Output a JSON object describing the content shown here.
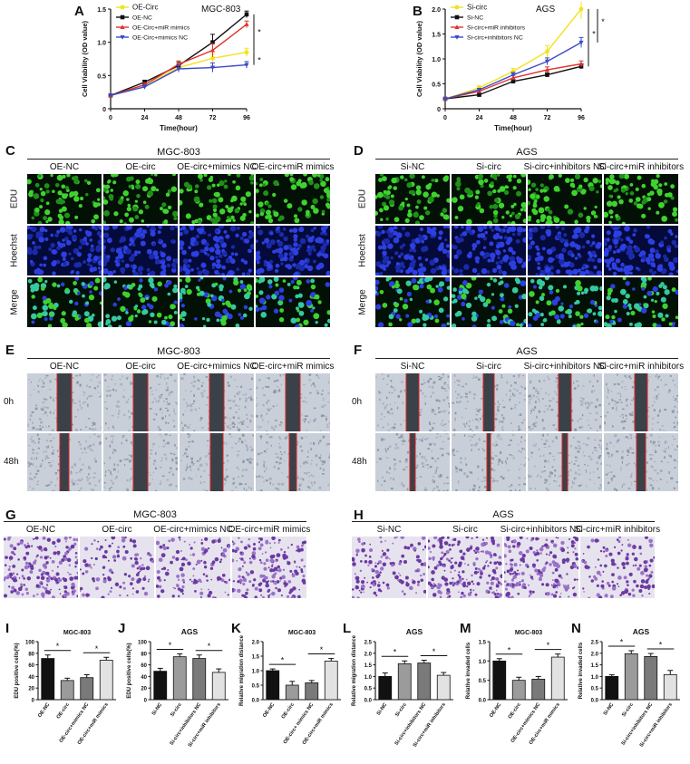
{
  "letters": [
    "A",
    "B",
    "C",
    "D",
    "E",
    "F",
    "G",
    "H",
    "I",
    "J",
    "K",
    "L",
    "M",
    "N"
  ],
  "growth": [
    {
      "id": "A",
      "cell": "MGC-803",
      "legend": [
        "OE-Circ",
        "OE-NC",
        "OE-Circ+miR mimics",
        "OE-Circ+mimics NC"
      ],
      "colors": [
        "#f2e21b",
        "#111111",
        "#e0322b",
        "#3b49c8"
      ],
      "markers": [
        "circle",
        "square",
        "triangle",
        "tri-down"
      ],
      "x": [
        0,
        24,
        48,
        72,
        96
      ],
      "series": [
        [
          0.2,
          0.36,
          0.62,
          0.76,
          0.85
        ],
        [
          0.2,
          0.4,
          0.65,
          1.0,
          1.42
        ],
        [
          0.2,
          0.36,
          0.67,
          0.88,
          1.27
        ],
        [
          0.2,
          0.33,
          0.6,
          0.62,
          0.66
        ]
      ],
      "err": [
        [
          0.02,
          0.03,
          0.05,
          0.06,
          0.06
        ],
        [
          0.02,
          0.03,
          0.05,
          0.12,
          0.05
        ],
        [
          0.02,
          0.03,
          0.05,
          0.1,
          0.05
        ],
        [
          0.02,
          0.03,
          0.05,
          0.07,
          0.05
        ]
      ],
      "ylim": [
        0,
        1.5
      ],
      "yticks": [
        "0",
        "0.5",
        "1.0",
        "1.5"
      ],
      "xticks": [
        "0",
        "24",
        "48",
        "72",
        "96"
      ],
      "ylabel": "Cell Viability (OD value)",
      "xlabel": "Time(hour)",
      "sig": [
        "*",
        "*"
      ]
    },
    {
      "id": "B",
      "cell": "AGS",
      "legend": [
        "Si-circ",
        "Si-NC",
        "Si-circ+miR inhibitors",
        "Si-circ+inhibitors NC"
      ],
      "colors": [
        "#f2e21b",
        "#111111",
        "#e0322b",
        "#3b49c8"
      ],
      "markers": [
        "circle",
        "square",
        "triangle",
        "tri-down"
      ],
      "x": [
        0,
        24,
        48,
        72,
        96
      ],
      "series": [
        [
          0.2,
          0.42,
          0.75,
          1.15,
          2.0
        ],
        [
          0.2,
          0.28,
          0.55,
          0.68,
          0.85
        ],
        [
          0.2,
          0.35,
          0.62,
          0.78,
          0.9
        ],
        [
          0.2,
          0.38,
          0.68,
          0.95,
          1.33
        ]
      ],
      "err": [
        [
          0.02,
          0.04,
          0.06,
          0.12,
          0.2
        ],
        [
          0.02,
          0.03,
          0.04,
          0.04,
          0.05
        ],
        [
          0.02,
          0.03,
          0.05,
          0.06,
          0.06
        ],
        [
          0.02,
          0.03,
          0.05,
          0.07,
          0.1
        ]
      ],
      "ylim": [
        0,
        2.0
      ],
      "yticks": [
        "0",
        "0.5",
        "1.0",
        "1.5",
        "2.0"
      ],
      "xticks": [
        "0",
        "24",
        "48",
        "72",
        "96"
      ],
      "ylabel": "Cell Viability (OD value)",
      "xlabel": "Time(hour)",
      "sig": [
        "*",
        "*"
      ]
    }
  ],
  "micro": {
    "C": {
      "cell": "MGC-803",
      "cols": [
        "OE-NC",
        "OE-circ",
        "OE-circ+mimics NC",
        "OE-circ+miR mimics"
      ],
      "rows": [
        "EDU",
        "Hoechst",
        "Merge"
      ]
    },
    "D": {
      "cell": "AGS",
      "cols": [
        "Si-NC",
        "Si-circ",
        "Si-circ+inhibitors NC",
        "Si-circ+miR inhibitors"
      ],
      "rows": [
        "EDU",
        "Hoechst",
        "Merge"
      ]
    },
    "E": {
      "cell": "MGC-803",
      "cols": [
        "OE-NC",
        "OE-circ",
        "OE-circ+mimics NC",
        "OE-circ+miR mimics"
      ],
      "rows": [
        "0h",
        "48h"
      ]
    },
    "F": {
      "cell": "AGS",
      "cols": [
        "Si-NC",
        "Si-circ",
        "Si-circ+inhibitors NC",
        "Si-circ+miR inhibitors"
      ],
      "rows": [
        "0h",
        "48h"
      ]
    },
    "G": {
      "cell": "MGC-803",
      "cols": [
        "OE-NC",
        "OE-circ",
        "OE-circ+mimics NC",
        "OE-circ+miR mimics"
      ]
    },
    "H": {
      "cell": "AGS",
      "cols": [
        "Si-NC",
        "Si-circ",
        "Si-circ+inhibitors NC",
        "Si-circ+miR inhibitors"
      ]
    }
  },
  "chart_data": [
    {
      "type": "line",
      "panel": "A",
      "title": "MGC-803",
      "xlabel": "Time(hour)",
      "ylabel": "Cell Viability (OD value)",
      "x": [
        0,
        24,
        48,
        72,
        96
      ],
      "ylim": [
        0,
        1.5
      ],
      "legend": "top-left",
      "series": [
        {
          "name": "OE-Circ",
          "values": [
            0.2,
            0.36,
            0.62,
            0.76,
            0.85
          ]
        },
        {
          "name": "OE-NC",
          "values": [
            0.2,
            0.4,
            0.65,
            1.0,
            1.42
          ]
        },
        {
          "name": "OE-Circ+miR mimics",
          "values": [
            0.2,
            0.36,
            0.67,
            0.88,
            1.27
          ]
        },
        {
          "name": "OE-Circ+mimics NC",
          "values": [
            0.2,
            0.33,
            0.6,
            0.62,
            0.66
          ]
        }
      ]
    },
    {
      "type": "line",
      "panel": "B",
      "title": "AGS",
      "xlabel": "Time(hour)",
      "ylabel": "Cell Viability (OD value)",
      "x": [
        0,
        24,
        48,
        72,
        96
      ],
      "ylim": [
        0,
        2.0
      ],
      "legend": "top-left",
      "series": [
        {
          "name": "Si-circ",
          "values": [
            0.2,
            0.42,
            0.75,
            1.15,
            2.0
          ]
        },
        {
          "name": "Si-NC",
          "values": [
            0.2,
            0.28,
            0.55,
            0.68,
            0.85
          ]
        },
        {
          "name": "Si-circ+miR inhibitors",
          "values": [
            0.2,
            0.35,
            0.62,
            0.78,
            0.9
          ]
        },
        {
          "name": "Si-circ+inhibitors NC",
          "values": [
            0.2,
            0.38,
            0.68,
            0.95,
            1.33
          ]
        }
      ]
    },
    {
      "type": "bar",
      "panel": "I",
      "title": "MGC-803",
      "ylabel": "EDU positive cells(%)",
      "categories": [
        "OE-NC",
        "OE-circ",
        "OE-circ+mimics NC",
        "OE-circ+miR mimics"
      ],
      "values": [
        71,
        33,
        38,
        68
      ],
      "errors": [
        6,
        4,
        5,
        5
      ],
      "ylim": [
        0,
        100
      ],
      "yticks": [
        "0",
        "20",
        "40",
        "60",
        "80",
        "100"
      ],
      "sig": [
        [
          0,
          1
        ],
        [
          2,
          3
        ]
      ],
      "fills": [
        "#111111",
        "#9b9b9b",
        "#7a7a7a",
        "#e2e2e2"
      ]
    },
    {
      "type": "bar",
      "panel": "J",
      "title": "AGS",
      "ylabel": "EDU positive cells(%)",
      "categories": [
        "Si-NC",
        "Si-circ",
        "Si-circ+inhibitors NC",
        "Si-circ+miR inhibitors"
      ],
      "values": [
        49,
        74,
        71,
        47
      ],
      "errors": [
        5,
        5,
        6,
        6
      ],
      "ylim": [
        0,
        100
      ],
      "yticks": [
        "0",
        "20",
        "40",
        "60",
        "80",
        "100"
      ],
      "sig": [
        [
          0,
          1
        ],
        [
          2,
          3
        ]
      ],
      "fills": [
        "#111111",
        "#9b9b9b",
        "#7a7a7a",
        "#e2e2e2"
      ]
    },
    {
      "type": "bar",
      "panel": "K",
      "title": "MGC-803",
      "ylabel": "Relative migration distance",
      "categories": [
        "OE-NC",
        "OE-circ",
        "OE-circ+ mimics NC",
        "OE-circ+miR mimics"
      ],
      "values": [
        1.0,
        0.5,
        0.58,
        1.33
      ],
      "errors": [
        0.06,
        0.13,
        0.08,
        0.09
      ],
      "ylim": [
        0,
        2.0
      ],
      "yticks": [
        "0.0",
        "0.5",
        "1.0",
        "1.5",
        "2.0"
      ],
      "sig": [
        [
          0,
          1
        ],
        [
          2,
          3
        ]
      ],
      "fills": [
        "#111111",
        "#9b9b9b",
        "#7a7a7a",
        "#e2e2e2"
      ]
    },
    {
      "type": "bar",
      "panel": "L",
      "title": "AGS",
      "ylabel": "Relative migration distance",
      "categories": [
        "Si-NC",
        "Si-circ",
        "Si-circ+inhibitors NC",
        "Si-circ+miR inhibitors"
      ],
      "values": [
        1.0,
        1.55,
        1.58,
        1.05
      ],
      "errors": [
        0.15,
        0.12,
        0.12,
        0.12
      ],
      "ylim": [
        0,
        2.5
      ],
      "yticks": [
        "0.0",
        "0.5",
        "1.0",
        "1.5",
        "2.0",
        "2.5"
      ],
      "sig": [
        [
          0,
          1
        ],
        [
          2,
          3
        ]
      ],
      "fills": [
        "#111111",
        "#9b9b9b",
        "#7a7a7a",
        "#e2e2e2"
      ]
    },
    {
      "type": "bar",
      "panel": "M",
      "title": "MGC-803",
      "ylabel": "Relative invaded cells",
      "categories": [
        "OE-NC",
        "OE-circ",
        "OE-circ+mimics NC",
        "OE-circ+miR mimics"
      ],
      "values": [
        1.0,
        0.5,
        0.53,
        1.1
      ],
      "errors": [
        0.06,
        0.08,
        0.07,
        0.08
      ],
      "ylim": [
        0,
        1.5
      ],
      "yticks": [
        "0.0",
        "0.5",
        "1.0",
        "1.5"
      ],
      "sig": [
        [
          0,
          1
        ],
        [
          2,
          3
        ]
      ],
      "fills": [
        "#111111",
        "#9b9b9b",
        "#7a7a7a",
        "#e2e2e2"
      ]
    },
    {
      "type": "bar",
      "panel": "N",
      "title": "AGS",
      "ylabel": "Relative invaded cells",
      "categories": [
        "Si-NC",
        "Si-circ",
        "Si-circ+inhibitors NC",
        "Si-circ+miR inhibitors"
      ],
      "values": [
        1.0,
        1.98,
        1.86,
        1.08
      ],
      "errors": [
        0.07,
        0.13,
        0.13,
        0.18
      ],
      "ylim": [
        0,
        2.5
      ],
      "yticks": [
        "0.0",
        "0.5",
        "1.0",
        "1.5",
        "2.0",
        "2.5"
      ],
      "sig": [
        [
          0,
          1
        ],
        [
          2,
          3
        ]
      ],
      "fills": [
        "#111111",
        "#9b9b9b",
        "#7a7a7a",
        "#e2e2e2"
      ]
    }
  ]
}
